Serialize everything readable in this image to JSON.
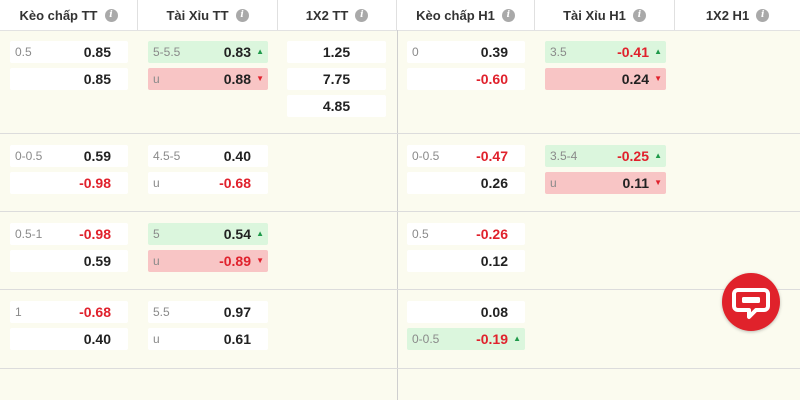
{
  "header": {
    "columns": [
      "Kèo chấp TT",
      "Tài Xỉu TT",
      "1X2 TT",
      "Kèo chấp H1",
      "Tài Xỉu H1",
      "1X2 H1"
    ],
    "info_icon": "i"
  },
  "rows": [
    {
      "keo_tt": [
        {
          "line": "0.5",
          "odd": "0.85"
        },
        {
          "line": "",
          "odd": "0.85"
        }
      ],
      "taixiu_tt": [
        {
          "line": "5-5.5",
          "odd": "0.83",
          "trend": "up"
        },
        {
          "line": "u",
          "odd": "0.88",
          "trend": "down"
        }
      ],
      "x12_tt": [
        "1.25",
        "7.75",
        "4.85"
      ],
      "keo_h1": [
        {
          "line": "0",
          "odd": "0.39"
        },
        {
          "line": "",
          "odd": "-0.60"
        }
      ],
      "taixiu_h1": [
        {
          "line": "3.5",
          "odd": "-0.41",
          "trend": "up"
        },
        {
          "line": "",
          "odd": "0.24",
          "trend": "down"
        }
      ]
    },
    {
      "keo_tt": [
        {
          "line": "0-0.5",
          "odd": "0.59"
        },
        {
          "line": "",
          "odd": "-0.98"
        }
      ],
      "taixiu_tt": [
        {
          "line": "4.5-5",
          "odd": "0.40"
        },
        {
          "line": "u",
          "odd": "-0.68"
        }
      ],
      "keo_h1": [
        {
          "line": "0-0.5",
          "odd": "-0.47"
        },
        {
          "line": "",
          "odd": "0.26"
        }
      ],
      "taixiu_h1": [
        {
          "line": "3.5-4",
          "odd": "-0.25",
          "trend": "up"
        },
        {
          "line": "u",
          "odd": "0.11",
          "trend": "down"
        }
      ]
    },
    {
      "keo_tt": [
        {
          "line": "0.5-1",
          "odd": "-0.98"
        },
        {
          "line": "",
          "odd": "0.59"
        }
      ],
      "taixiu_tt": [
        {
          "line": "5",
          "odd": "0.54",
          "trend": "up"
        },
        {
          "line": "u",
          "odd": "-0.89",
          "trend": "down"
        }
      ],
      "keo_h1": [
        {
          "line": "0.5",
          "odd": "-0.26"
        },
        {
          "line": "",
          "odd": "0.12"
        }
      ]
    },
    {
      "keo_tt": [
        {
          "line": "1",
          "odd": "-0.68"
        },
        {
          "line": "",
          "odd": "0.40"
        }
      ],
      "taixiu_tt": [
        {
          "line": "5.5",
          "odd": "0.97"
        },
        {
          "line": "u",
          "odd": "0.61"
        }
      ],
      "keo_h1": [
        {
          "line": "",
          "odd": "0.08"
        },
        {
          "line": "0-0.5",
          "odd": "-0.19",
          "trend": "up"
        }
      ]
    }
  ],
  "icons": {
    "arrow_up": "▲",
    "arrow_down": "▼",
    "chat": "chat-bubble-icon"
  },
  "colors": {
    "up_bg": "#dbf6dd",
    "down_bg": "#f8c5c5",
    "negative": "#e0212c",
    "chat_button": "#e0222b"
  }
}
